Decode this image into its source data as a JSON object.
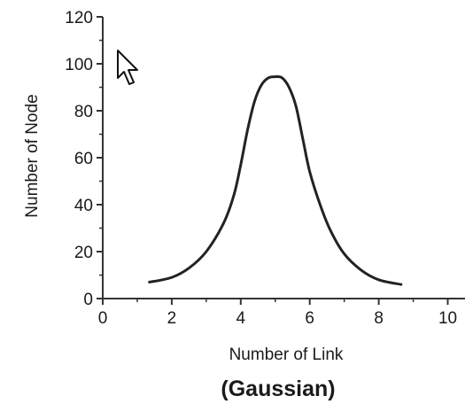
{
  "chart_data": {
    "type": "line",
    "xlabel": "Number of Link",
    "ylabel": "Number of Node",
    "caption": "(Gaussian)",
    "xlim": [
      0,
      10.5
    ],
    "ylim": [
      0,
      120
    ],
    "xticks": [
      0,
      2,
      4,
      6,
      8,
      10
    ],
    "yticks": [
      0,
      20,
      40,
      60,
      80,
      100,
      120
    ],
    "grid": false,
    "series": [
      {
        "x": [
          1.35,
          2.0,
          2.5,
          3.0,
          3.5,
          3.8,
          4.0,
          4.2,
          4.4,
          4.6,
          4.8,
          5.0,
          5.2,
          5.4,
          5.6,
          5.8,
          6.0,
          6.3,
          6.6,
          7.0,
          7.5,
          8.0,
          8.65
        ],
        "y": [
          7,
          9,
          13,
          20,
          32,
          44,
          57,
          72,
          84,
          91,
          94,
          94.5,
          94,
          90,
          82,
          68,
          54,
          40,
          29,
          19,
          12,
          8,
          6
        ]
      }
    ],
    "annotations": [
      {
        "type": "cursor",
        "icon": "mouse-pointer-icon"
      }
    ],
    "colors": {
      "line": "#222222",
      "axis": "#333333"
    }
  }
}
